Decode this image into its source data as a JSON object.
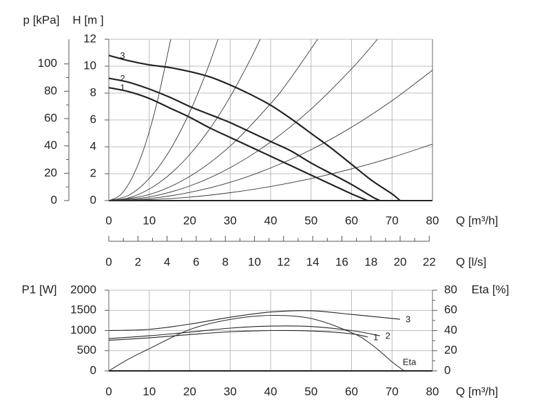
{
  "chart_data": [
    {
      "type": "line",
      "xlabel": "Q [m³/h]",
      "ylabel": "H [m ]",
      "y2label": "p [kPa]",
      "x2label": "Q [l/s]",
      "xlim": [
        0,
        80
      ],
      "xticks": [
        0,
        10,
        20,
        30,
        40,
        50,
        60,
        70,
        80
      ],
      "ylim": [
        0,
        12
      ],
      "yticks": [
        0,
        2,
        4,
        6,
        8,
        10,
        12
      ],
      "y2lim": [
        0,
        118
      ],
      "y2ticks": [
        0,
        20,
        40,
        60,
        80,
        100
      ],
      "x2lim": [
        0,
        22.22
      ],
      "x2ticks": [
        0,
        2,
        4,
        6,
        8,
        10,
        12,
        14,
        16,
        18,
        20,
        22
      ],
      "grid": true,
      "series": [
        {
          "name": "1",
          "color": "#222222",
          "x": [
            0,
            5,
            10,
            15,
            20,
            25,
            30,
            35,
            40,
            45,
            50,
            55,
            60,
            64
          ],
          "values": [
            8.4,
            8.1,
            7.6,
            6.9,
            6.2,
            5.4,
            4.7,
            4.0,
            3.3,
            2.6,
            1.9,
            1.2,
            0.5,
            0
          ]
        },
        {
          "name": "2",
          "color": "#222222",
          "x": [
            0,
            5,
            10,
            15,
            20,
            25,
            30,
            35,
            40,
            45,
            50,
            55,
            60,
            65,
            67
          ],
          "values": [
            9.1,
            8.8,
            8.3,
            7.7,
            7.0,
            6.4,
            5.8,
            5.1,
            4.4,
            3.7,
            2.8,
            2.0,
            1.2,
            0.3,
            0
          ]
        },
        {
          "name": "3",
          "color": "#222222",
          "x": [
            0,
            5,
            10,
            15,
            20,
            25,
            30,
            35,
            40,
            45,
            50,
            55,
            60,
            65,
            70,
            72
          ],
          "values": [
            10.8,
            10.4,
            10.1,
            9.9,
            9.6,
            9.2,
            8.6,
            7.9,
            7.1,
            6.1,
            5.0,
            3.9,
            2.7,
            1.5,
            0.5,
            0
          ]
        }
      ],
      "system_curves": [
        {
          "color": "#333333",
          "x": [
            0,
            3,
            6,
            9,
            12,
            15.3
          ],
          "values": [
            0,
            0.46,
            1.85,
            4.16,
            7.39,
            12
          ]
        },
        {
          "color": "#333333",
          "x": [
            0,
            5,
            10,
            15,
            20,
            24,
            27
          ],
          "values": [
            0,
            0.41,
            1.65,
            3.7,
            6.58,
            9.48,
            12
          ]
        },
        {
          "color": "#333333",
          "x": [
            0,
            5,
            10,
            15,
            20,
            25,
            30,
            35,
            37.4
          ],
          "values": [
            0,
            0.21,
            0.86,
            1.93,
            3.43,
            5.36,
            7.72,
            10.51,
            12
          ]
        },
        {
          "color": "#333333",
          "x": [
            0,
            10,
            20,
            30,
            40,
            45,
            51.6
          ],
          "values": [
            0,
            0.45,
            1.8,
            4.06,
            7.21,
            9.13,
            12
          ]
        },
        {
          "color": "#333333",
          "x": [
            0,
            10,
            20,
            30,
            40,
            50,
            60,
            66.4
          ],
          "values": [
            0,
            0.27,
            1.09,
            2.45,
            4.36,
            6.81,
            9.8,
            12
          ]
        },
        {
          "color": "#333333",
          "x": [
            0,
            10,
            20,
            30,
            40,
            50,
            60,
            70,
            80
          ],
          "values": [
            0,
            0.15,
            0.61,
            1.36,
            2.43,
            3.79,
            5.46,
            7.43,
            9.7
          ]
        },
        {
          "color": "#333333",
          "x": [
            0,
            10,
            20,
            30,
            40,
            50,
            60,
            70,
            80
          ],
          "values": [
            0,
            0.07,
            0.26,
            0.59,
            1.05,
            1.64,
            2.36,
            3.21,
            4.2
          ]
        }
      ]
    },
    {
      "type": "line",
      "xlabel": "Q [m³/h]",
      "ylabel": "P1 [W]",
      "y2label": "Eta [%]",
      "xlim": [
        0,
        80
      ],
      "xticks": [
        0,
        10,
        20,
        30,
        40,
        50,
        60,
        70,
        80
      ],
      "ylim": [
        0,
        2000
      ],
      "yticks": [
        0,
        500,
        1000,
        1500,
        2000
      ],
      "y2lim": [
        0,
        80
      ],
      "y2ticks": [
        0,
        20,
        40,
        60,
        80
      ],
      "grid": true,
      "series": [
        {
          "name": "1",
          "color": "#222222",
          "x": [
            0,
            10,
            20,
            30,
            40,
            50,
            60,
            64
          ],
          "values": [
            760,
            820,
            900,
            970,
            1000,
            990,
            920,
            840
          ]
        },
        {
          "name": "2",
          "color": "#222222",
          "x": [
            0,
            10,
            20,
            30,
            40,
            50,
            60,
            67
          ],
          "values": [
            800,
            870,
            960,
            1060,
            1110,
            1100,
            1000,
            870
          ]
        },
        {
          "name": "3",
          "color": "#222222",
          "x": [
            0,
            10,
            20,
            30,
            40,
            50,
            60,
            70,
            72
          ],
          "values": [
            1000,
            1030,
            1160,
            1330,
            1460,
            1490,
            1400,
            1300,
            1280
          ]
        },
        {
          "name": "Eta",
          "color": "#222222",
          "axis": "y2",
          "x": [
            0,
            5,
            10,
            20,
            30,
            40,
            50,
            60,
            65,
            70,
            73
          ],
          "values": [
            0,
            12,
            22,
            41,
            51,
            55,
            52,
            38,
            26,
            9,
            0
          ]
        }
      ]
    }
  ]
}
